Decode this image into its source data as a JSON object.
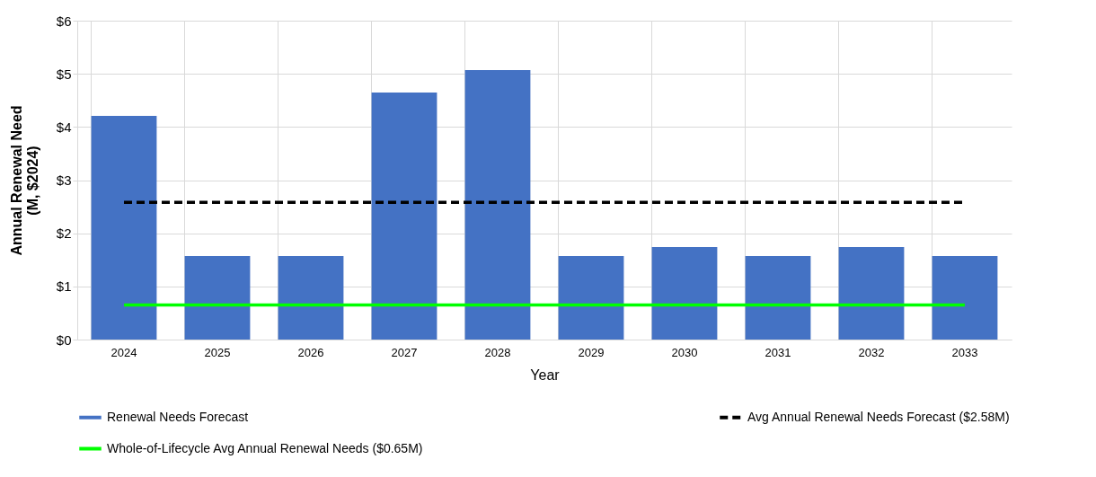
{
  "chart_data": {
    "type": "bar",
    "xlabel": "Year",
    "ylabel": "Annual Renewal Need\n(M, $2024)",
    "categories": [
      "2024",
      "2025",
      "2026",
      "2027",
      "2028",
      "2029",
      "2030",
      "2031",
      "2032",
      "2033"
    ],
    "series": [
      {
        "name": "Renewal Needs Forecast",
        "color": "#4472c4",
        "values": [
          4.21,
          1.57,
          1.57,
          4.65,
          5.07,
          1.57,
          1.74,
          1.57,
          1.74,
          1.57
        ]
      },
      {
        "name": "Avg Annual Renewal Needs Forecast ($2.58M)",
        "type": "line",
        "line_style": "dashed",
        "color": "#000000",
        "values": [
          2.58,
          2.58,
          2.58,
          2.58,
          2.58,
          2.58,
          2.58,
          2.58,
          2.58,
          2.58
        ]
      },
      {
        "name": "Whole-of-Lifecycle Avg Annual Renewal Needs ($0.65M)",
        "type": "line",
        "line_style": "solid",
        "color": "#00ff00",
        "values": [
          0.65,
          0.65,
          0.65,
          0.65,
          0.65,
          0.65,
          0.65,
          0.65,
          0.65,
          0.65
        ]
      }
    ],
    "ylim": [
      0,
      6
    ],
    "yticks": [
      {
        "value": 0,
        "label": "$0"
      },
      {
        "value": 1,
        "label": "$1"
      },
      {
        "value": 2,
        "label": "$2"
      },
      {
        "value": 3,
        "label": "$3"
      },
      {
        "value": 4,
        "label": "$4"
      },
      {
        "value": 5,
        "label": "$5"
      },
      {
        "value": 6,
        "label": "$6"
      }
    ],
    "grid": true,
    "legend": "bottom",
    "marker": "none"
  }
}
